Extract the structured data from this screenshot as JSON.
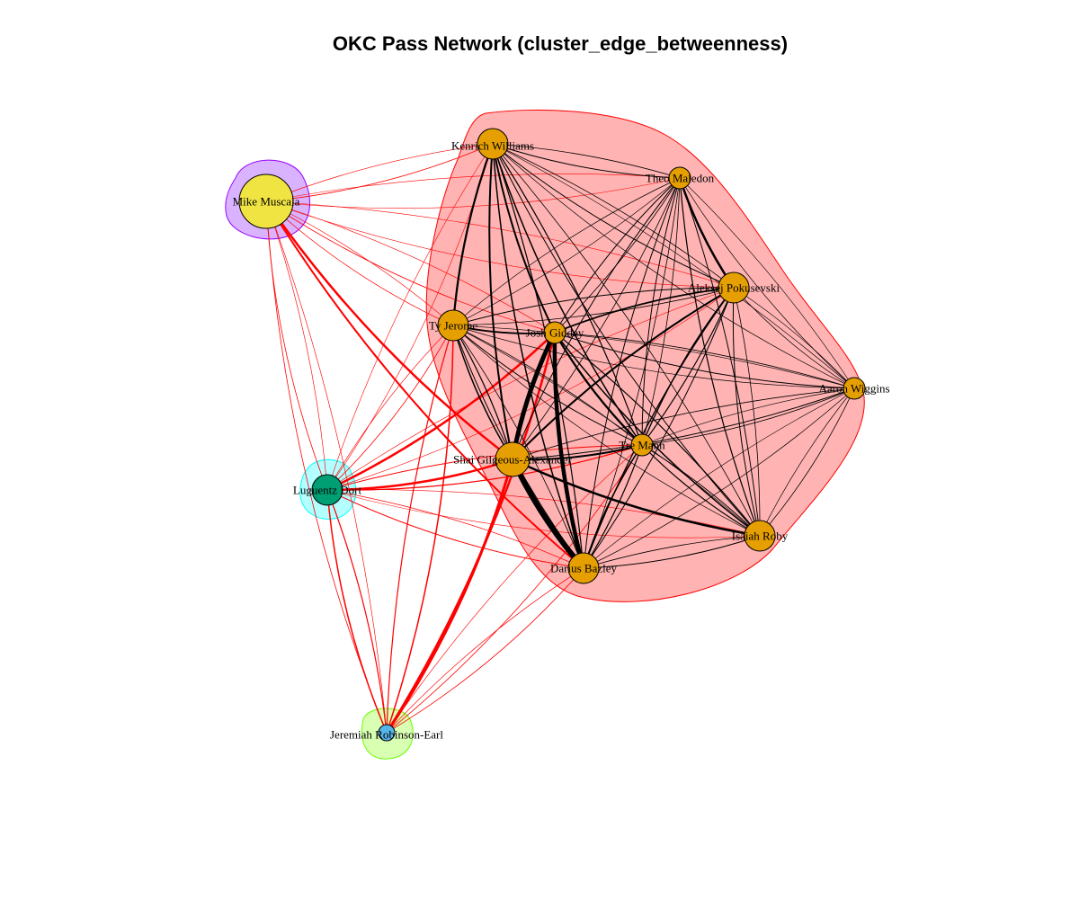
{
  "title": "OKC Pass Network (cluster_edge_betweenness)",
  "colors": {
    "cluster_1_fill": "#ff9999",
    "cluster_1_stroke": "#ff0000",
    "cluster_2_fill": "#cc99ff",
    "cluster_2_stroke": "#9900ff",
    "cluster_3_fill": "#99ffff",
    "cluster_3_stroke": "#00ffff",
    "cluster_4_fill": "#ccff99",
    "cluster_4_stroke": "#66ff00",
    "node_orange": "#e69f00",
    "node_yellow": "#f0e442",
    "node_teal": "#009e73",
    "node_blue": "#56b4e9",
    "edge_within": "#000000",
    "edge_between": "#ff0000"
  },
  "nodes": [
    {
      "id": "KW",
      "label": "Kenrich Williams",
      "cluster": 1,
      "color": "#e69f00",
      "size": "medium"
    },
    {
      "id": "TM",
      "label": "Theo Maledon",
      "cluster": 1,
      "color": "#e69f00",
      "size": "small"
    },
    {
      "id": "AP",
      "label": "Aleksej Pokusevski",
      "cluster": 1,
      "color": "#e69f00",
      "size": "medium"
    },
    {
      "id": "TJ",
      "label": "Ty Jerome",
      "cluster": 1,
      "color": "#e69f00",
      "size": "medium"
    },
    {
      "id": "JG",
      "label": "Josh Giddey",
      "cluster": 1,
      "color": "#e69f00",
      "size": "small"
    },
    {
      "id": "AW",
      "label": "Aaron Wiggins",
      "cluster": 1,
      "color": "#e69f00",
      "size": "small"
    },
    {
      "id": "TMa",
      "label": "Tre Mann",
      "cluster": 1,
      "color": "#e69f00",
      "size": "small"
    },
    {
      "id": "SGA",
      "label": "Shai Gilgeous-Alexander",
      "cluster": 1,
      "color": "#e69f00",
      "size": "large"
    },
    {
      "id": "IR",
      "label": "Isaiah Roby",
      "cluster": 1,
      "color": "#e69f00",
      "size": "medium"
    },
    {
      "id": "DB",
      "label": "Darius Bazley",
      "cluster": 1,
      "color": "#e69f00",
      "size": "medium"
    },
    {
      "id": "MM",
      "label": "Mike Muscala",
      "cluster": 2,
      "color": "#f0e442",
      "size": "xlarge"
    },
    {
      "id": "LD",
      "label": "Luguentz Dort",
      "cluster": 3,
      "color": "#009e73",
      "size": "medium"
    },
    {
      "id": "JRE",
      "label": "Jeremiah Robinson-Earl",
      "cluster": 4,
      "color": "#56b4e9",
      "size": "tiny"
    }
  ],
  "edges_within": [
    [
      "KW",
      "TM",
      1
    ],
    [
      "KW",
      "AP",
      1
    ],
    [
      "KW",
      "TJ",
      2.2
    ],
    [
      "KW",
      "JG",
      2
    ],
    [
      "KW",
      "TMa",
      1.5
    ],
    [
      "KW",
      "SGA",
      2
    ],
    [
      "KW",
      "IR",
      1
    ],
    [
      "KW",
      "DB",
      1.5
    ],
    [
      "KW",
      "AW",
      0.7
    ],
    [
      "TM",
      "AP",
      2.5
    ],
    [
      "TM",
      "JG",
      1
    ],
    [
      "TM",
      "TJ",
      0.7
    ],
    [
      "TM",
      "TMa",
      1
    ],
    [
      "TM",
      "SGA",
      1
    ],
    [
      "TM",
      "IR",
      1.2
    ],
    [
      "TM",
      "DB",
      1
    ],
    [
      "TM",
      "AW",
      0.7
    ],
    [
      "AP",
      "JG",
      1.8
    ],
    [
      "AP",
      "TJ",
      1
    ],
    [
      "AP",
      "TMa",
      1.4
    ],
    [
      "AP",
      "SGA",
      2
    ],
    [
      "AP",
      "IR",
      1
    ],
    [
      "AP",
      "DB",
      1.3
    ],
    [
      "AP",
      "AW",
      0.7
    ],
    [
      "TJ",
      "JG",
      1.8
    ],
    [
      "TJ",
      "SGA",
      1.5
    ],
    [
      "TJ",
      "TMa",
      1
    ],
    [
      "TJ",
      "DB",
      1
    ],
    [
      "TJ",
      "IR",
      0.7
    ],
    [
      "TJ",
      "AW",
      0.7
    ],
    [
      "JG",
      "SGA",
      5
    ],
    [
      "JG",
      "DB",
      4.5
    ],
    [
      "JG",
      "TMa",
      2.2
    ],
    [
      "JG",
      "IR",
      1.5
    ],
    [
      "JG",
      "AW",
      1
    ],
    [
      "SGA",
      "DB",
      6
    ],
    [
      "SGA",
      "TMa",
      2
    ],
    [
      "SGA",
      "IR",
      2.5
    ],
    [
      "SGA",
      "AW",
      1
    ],
    [
      "TMa",
      "DB",
      1.5
    ],
    [
      "TMa",
      "IR",
      1.2
    ],
    [
      "TMa",
      "AW",
      0.8
    ],
    [
      "DB",
      "IR",
      1
    ],
    [
      "DB",
      "AW",
      0.7
    ],
    [
      "IR",
      "AW",
      0.8
    ]
  ],
  "edges_between": [
    [
      "MM",
      "KW",
      0.8
    ],
    [
      "MM",
      "TJ",
      0.7
    ],
    [
      "MM",
      "JG",
      0.8
    ],
    [
      "MM",
      "SGA",
      2.5
    ],
    [
      "MM",
      "DB",
      2
    ],
    [
      "MM",
      "LD",
      0.8
    ],
    [
      "MM",
      "JRE",
      0.8
    ],
    [
      "MM",
      "TM",
      0.6
    ],
    [
      "MM",
      "AP",
      0.6
    ],
    [
      "LD",
      "JG",
      2.5
    ],
    [
      "LD",
      "SGA",
      2.5
    ],
    [
      "LD",
      "TJ",
      0.8
    ],
    [
      "LD",
      "KW",
      0.6
    ],
    [
      "LD",
      "TMa",
      1.2
    ],
    [
      "LD",
      "DB",
      1
    ],
    [
      "LD",
      "IR",
      0.6
    ],
    [
      "LD",
      "JRE",
      1.5
    ],
    [
      "LD",
      "AP",
      0.6
    ],
    [
      "JRE",
      "JG",
      2.5
    ],
    [
      "JRE",
      "SGA",
      3
    ],
    [
      "JRE",
      "DB",
      0.8
    ],
    [
      "JRE",
      "TJ",
      1.5
    ],
    [
      "JRE",
      "TMa",
      0.8
    ]
  ]
}
